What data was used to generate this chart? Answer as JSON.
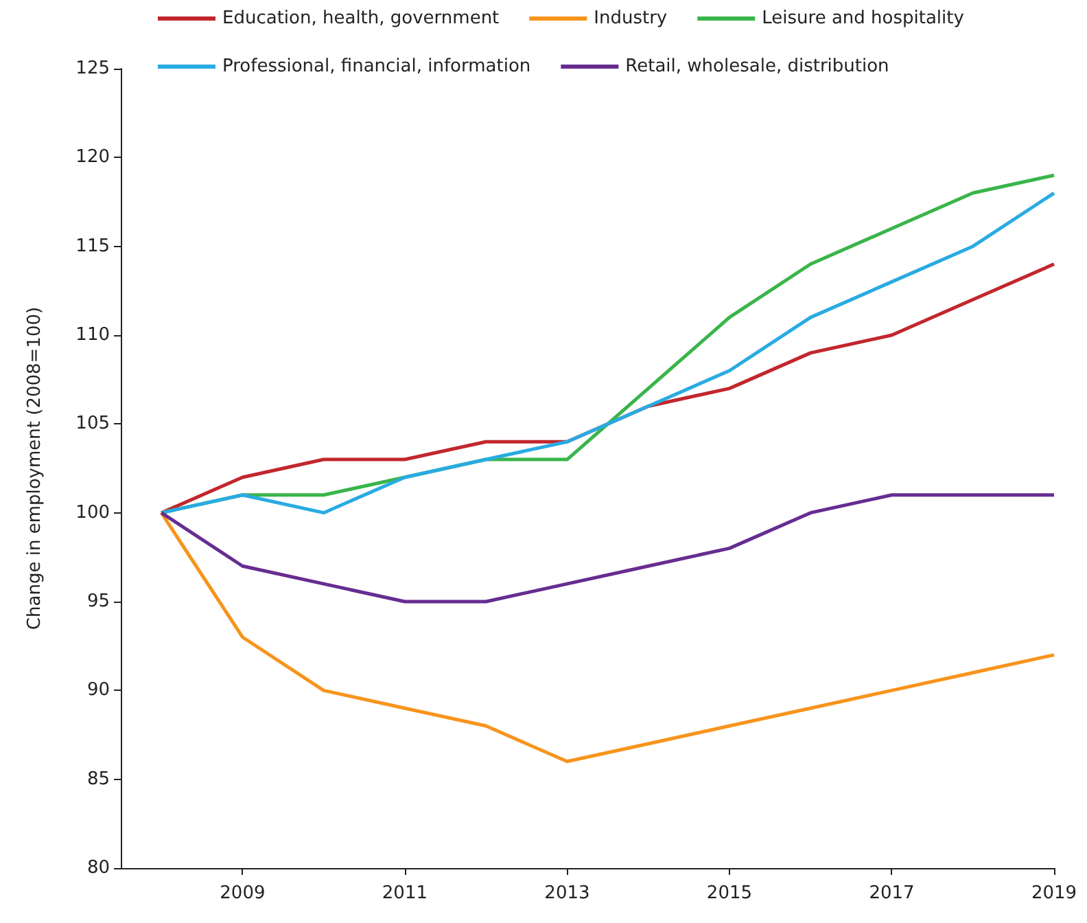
{
  "chart_data": {
    "type": "line",
    "ylabel": "Change in employment (2008=100)",
    "x": [
      2008,
      2009,
      2010,
      2011,
      2012,
      2013,
      2014,
      2015,
      2016,
      2017,
      2018,
      2019
    ],
    "series": [
      {
        "name": "Education, health, government",
        "color": "#c1272d",
        "values": [
          100,
          102,
          103,
          103,
          104,
          104,
          106,
          107,
          109,
          110,
          112,
          114
        ]
      },
      {
        "name": "Industry",
        "color": "#f7941d",
        "values": [
          100,
          93,
          90,
          89,
          88,
          86,
          87,
          88,
          89,
          90,
          91,
          92
        ]
      },
      {
        "name": "Leisure and hospitality",
        "color": "#39b54a",
        "values": [
          100,
          101,
          101,
          102,
          103,
          103,
          107,
          111,
          114,
          116,
          118,
          119
        ]
      },
      {
        "name": "Professional, financial, information",
        "color": "#29abe2",
        "values": [
          100,
          101,
          100,
          102,
          103,
          104,
          106,
          108,
          111,
          113,
          115,
          118
        ]
      },
      {
        "name": "Retail, wholesale, distribution",
        "color": "#662d91",
        "values": [
          100,
          97,
          96,
          95,
          95,
          96,
          97,
          98,
          100,
          101,
          101,
          101
        ]
      }
    ],
    "xlim": [
      2007.5,
      2019
    ],
    "xticks": [
      2009,
      2011,
      2013,
      2015,
      2017,
      2019
    ],
    "ylim": [
      80,
      125
    ],
    "yticks": [
      80,
      85,
      90,
      95,
      100,
      105,
      110,
      115,
      120,
      125
    ],
    "grid": false,
    "legend": "top",
    "marker": "none",
    "line_style": "solid"
  }
}
